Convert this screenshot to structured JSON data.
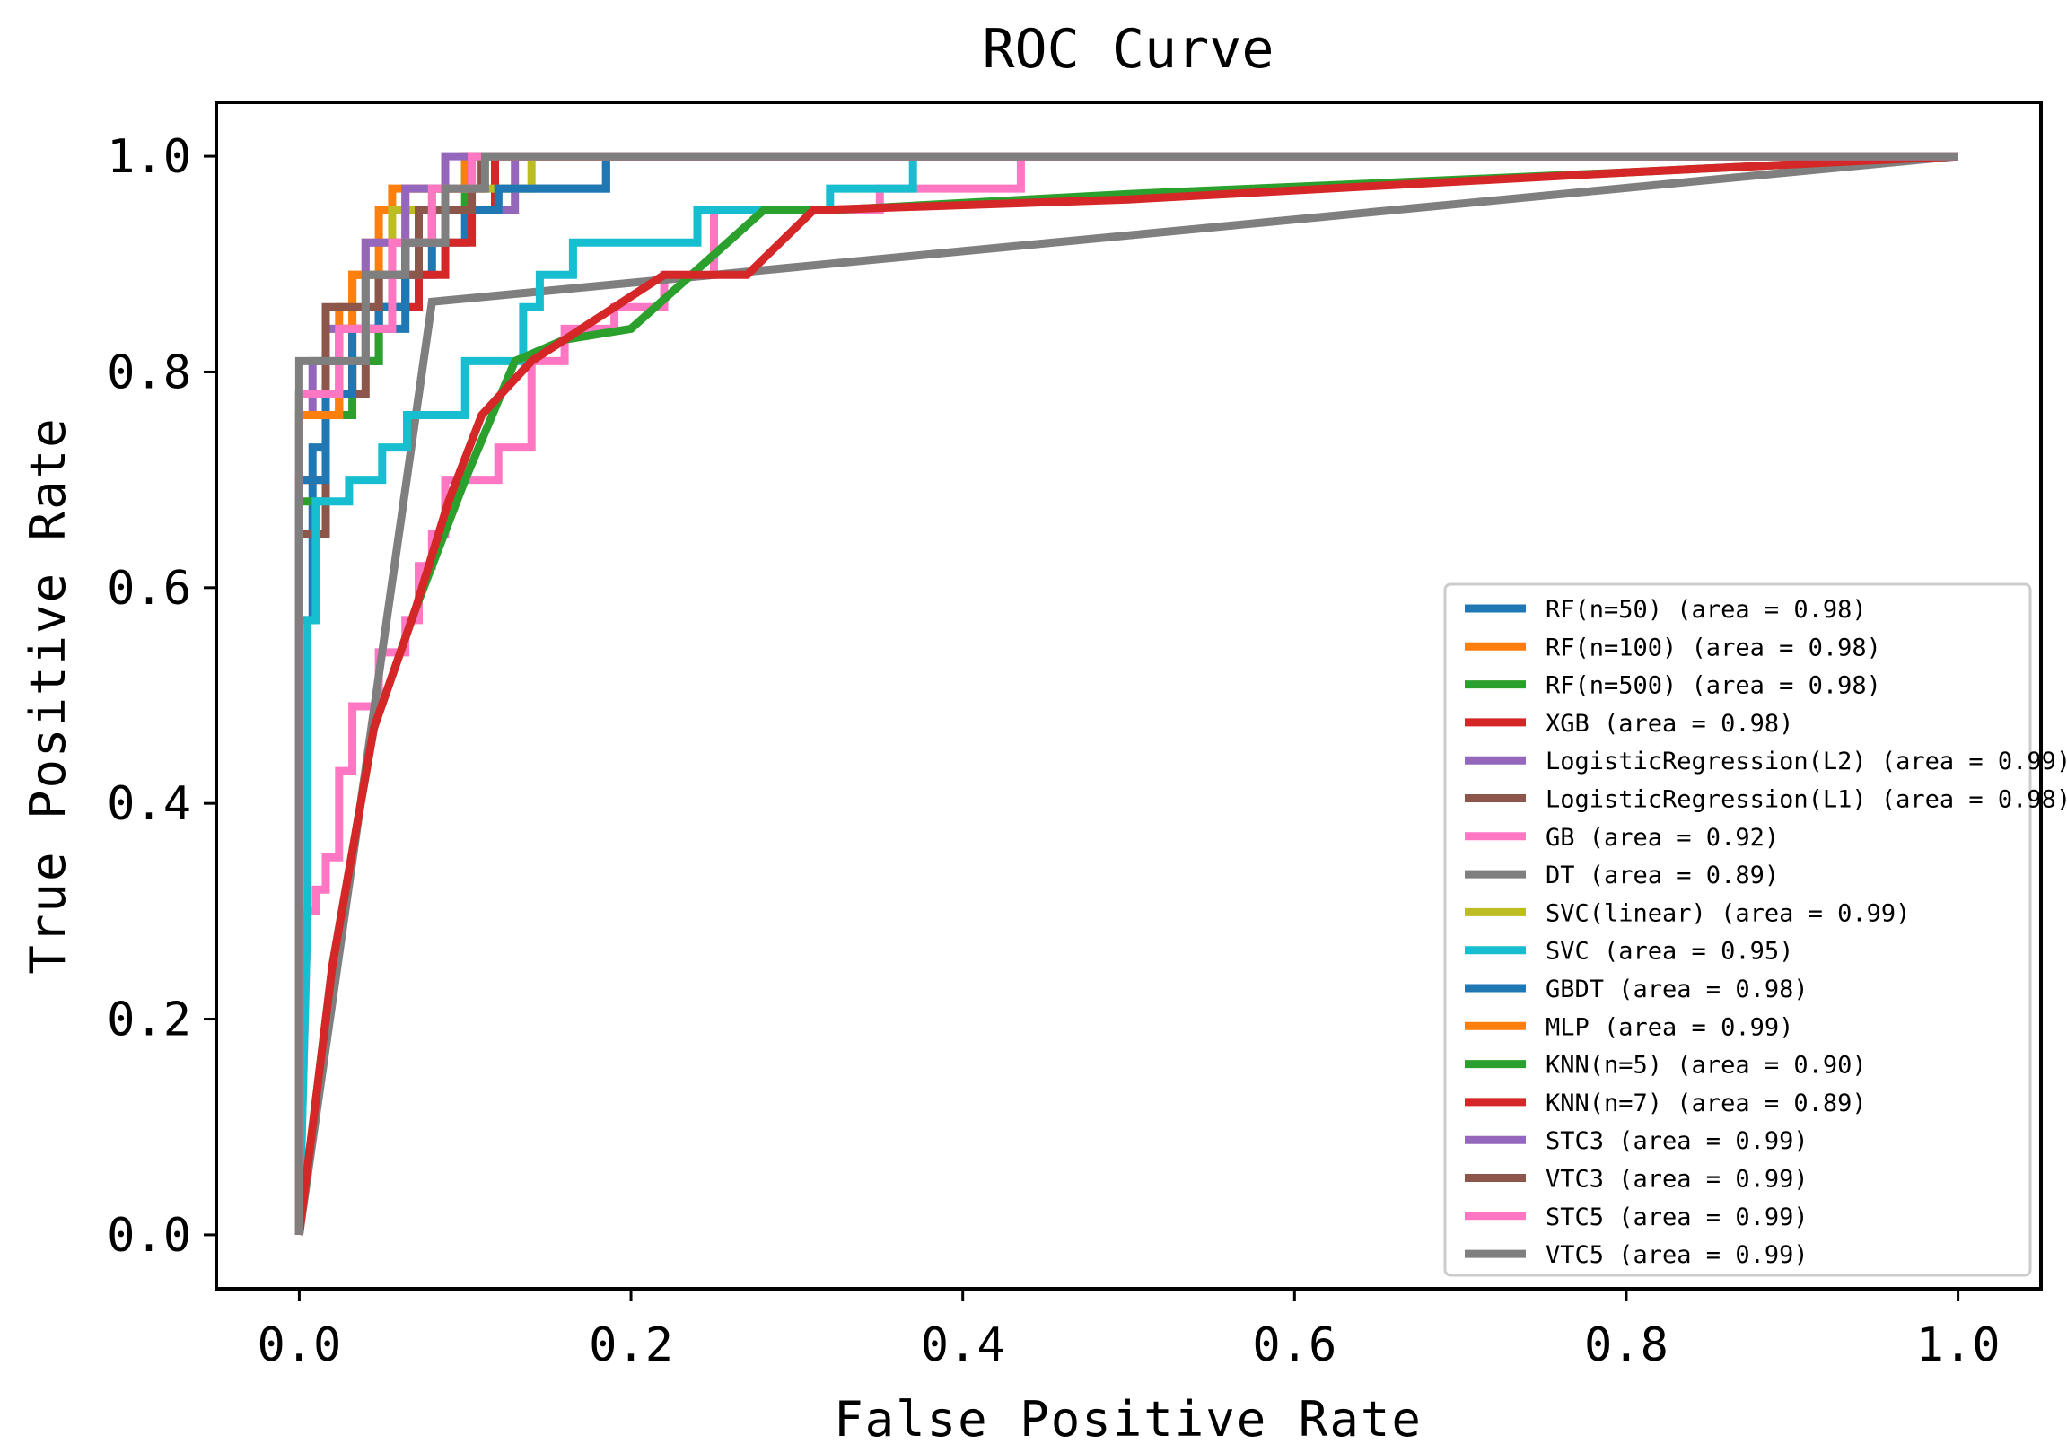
{
  "chart_data": {
    "type": "line",
    "title": "ROC Curve",
    "xlabel": "False Positive Rate",
    "ylabel": "True Positive Rate",
    "xlim": [
      -0.05,
      1.05
    ],
    "ylim": [
      -0.05,
      1.05
    ],
    "xticks": [
      "0.0",
      "0.2",
      "0.4",
      "0.6",
      "0.8",
      "1.0"
    ],
    "yticks": [
      "0.0",
      "0.2",
      "0.4",
      "0.6",
      "0.8",
      "1.0"
    ],
    "grid": false,
    "legend_position": "lower right",
    "series": [
      {
        "name": "RF(n=50) (area = 0.98)",
        "color": "#1f77b4",
        "x": [
          0,
          0,
          0.008,
          0.008,
          0.016,
          0.016,
          0.024,
          0.024,
          0.032,
          0.032,
          0.048,
          0.048,
          0.064,
          0.064,
          0.08,
          0.08,
          0.1,
          0.1,
          0.12,
          0.12,
          0.185,
          0.185,
          1
        ],
        "y": [
          0,
          0.57,
          0.57,
          0.73,
          0.73,
          0.76,
          0.76,
          0.78,
          0.78,
          0.81,
          0.81,
          0.84,
          0.84,
          0.89,
          0.89,
          0.92,
          0.92,
          0.95,
          0.95,
          0.97,
          0.97,
          1.0,
          1.0
        ]
      },
      {
        "name": "RF(n=100) (area = 0.98)",
        "color": "#ff7f0e",
        "x": [
          0,
          0,
          0.016,
          0.016,
          0.024,
          0.024,
          0.032,
          0.032,
          0.04,
          0.04,
          0.048,
          0.048,
          0.056,
          0.056,
          0.064,
          0.064,
          0.11,
          0.11,
          1
        ],
        "y": [
          0,
          0.7,
          0.7,
          0.76,
          0.76,
          0.86,
          0.86,
          0.89,
          0.89,
          0.92,
          0.92,
          0.95,
          0.95,
          0.97,
          0.97,
          0.97,
          0.97,
          1.0,
          1.0
        ]
      },
      {
        "name": "RF(n=500) (area = 0.98)",
        "color": "#2ca02c",
        "x": [
          0,
          0,
          0.016,
          0.016,
          0.032,
          0.032,
          0.048,
          0.048,
          0.064,
          0.064,
          0.08,
          0.08,
          0.1,
          0.1,
          1
        ],
        "y": [
          0,
          0.68,
          0.68,
          0.76,
          0.76,
          0.81,
          0.81,
          0.86,
          0.86,
          0.92,
          0.92,
          0.95,
          0.95,
          1.0,
          1.0
        ]
      },
      {
        "name": "XGB (area = 0.98)",
        "color": "#d62728",
        "x": [
          0,
          0,
          0.016,
          0.016,
          0.032,
          0.032,
          0.048,
          0.048,
          0.072,
          0.072,
          0.088,
          0.088,
          0.104,
          0.104,
          0.118,
          0.118,
          1
        ],
        "y": [
          0,
          0.7,
          0.7,
          0.78,
          0.78,
          0.84,
          0.84,
          0.86,
          0.86,
          0.89,
          0.89,
          0.92,
          0.92,
          0.95,
          0.95,
          1.0,
          1.0
        ]
      },
      {
        "name": "LogisticRegression(L2) (area = 0.99)",
        "color": "#9467bd",
        "x": [
          0,
          0,
          0.008,
          0.008,
          0.024,
          0.024,
          0.048,
          0.048,
          0.072,
          0.072,
          0.13,
          0.13,
          1
        ],
        "y": [
          0,
          0.76,
          0.76,
          0.81,
          0.81,
          0.84,
          0.84,
          0.89,
          0.89,
          0.95,
          0.95,
          1.0,
          1.0
        ]
      },
      {
        "name": "LogisticRegression(L1) (area = 0.98)",
        "color": "#8c564b",
        "x": [
          0,
          0,
          0.016,
          0.016,
          0.04,
          0.04,
          0.048,
          0.048,
          0.064,
          0.064,
          0.088,
          0.088,
          0.11,
          0.11,
          1
        ],
        "y": [
          0,
          0.65,
          0.65,
          0.78,
          0.78,
          0.84,
          0.84,
          0.89,
          0.89,
          0.92,
          0.92,
          0.97,
          0.97,
          1.0,
          1.0
        ]
      },
      {
        "name": "GB (area = 0.92)",
        "color": "#ff77c3",
        "x": [
          0,
          0.005,
          0.01,
          0.01,
          0.016,
          0.016,
          0.024,
          0.024,
          0.032,
          0.032,
          0.048,
          0.048,
          0.064,
          0.064,
          0.072,
          0.072,
          0.08,
          0.08,
          0.088,
          0.088,
          0.12,
          0.12,
          0.14,
          0.14,
          0.16,
          0.16,
          0.19,
          0.19,
          0.22,
          0.22,
          0.25,
          0.25,
          0.35,
          0.35,
          0.435,
          0.435,
          1
        ],
        "y": [
          0,
          0.3,
          0.3,
          0.32,
          0.32,
          0.35,
          0.35,
          0.43,
          0.43,
          0.49,
          0.49,
          0.54,
          0.54,
          0.57,
          0.57,
          0.62,
          0.62,
          0.65,
          0.65,
          0.7,
          0.7,
          0.73,
          0.73,
          0.81,
          0.81,
          0.84,
          0.84,
          0.86,
          0.86,
          0.89,
          0.89,
          0.95,
          0.95,
          0.97,
          0.97,
          1.0,
          1.0
        ]
      },
      {
        "name": "DT (area = 0.89)",
        "color": "#7f7f7f",
        "x": [
          0,
          0.08,
          1
        ],
        "y": [
          0,
          0.865,
          1.0
        ]
      },
      {
        "name": "SVC(linear) (area = 0.99)",
        "color": "#bcbd22",
        "x": [
          0,
          0,
          0.016,
          0.016,
          0.032,
          0.032,
          0.056,
          0.056,
          0.08,
          0.08,
          0.14,
          0.14,
          1
        ],
        "y": [
          0,
          0.78,
          0.78,
          0.84,
          0.84,
          0.89,
          0.89,
          0.95,
          0.95,
          0.97,
          0.97,
          1.0,
          1.0
        ]
      },
      {
        "name": "SVC (area = 0.95)",
        "color": "#17becf",
        "x": [
          0,
          0.005,
          0.005,
          0.01,
          0.01,
          0.03,
          0.03,
          0.05,
          0.05,
          0.065,
          0.065,
          0.1,
          0.1,
          0.135,
          0.135,
          0.145,
          0.145,
          0.165,
          0.165,
          0.24,
          0.24,
          0.32,
          0.32,
          0.37,
          0.37,
          1
        ],
        "y": [
          0,
          0.3,
          0.57,
          0.57,
          0.68,
          0.68,
          0.7,
          0.7,
          0.73,
          0.73,
          0.76,
          0.76,
          0.81,
          0.81,
          0.86,
          0.86,
          0.89,
          0.89,
          0.92,
          0.92,
          0.95,
          0.95,
          0.97,
          0.97,
          1.0,
          1.0
        ]
      },
      {
        "name": "GBDT (area = 0.98)",
        "color": "#1f77b4",
        "x": [
          0,
          0,
          0.016,
          0.016,
          0.032,
          0.032,
          0.048,
          0.048,
          0.064,
          0.064,
          0.08,
          0.08,
          0.12,
          0.12,
          0.185,
          0.185,
          1
        ],
        "y": [
          0,
          0.7,
          0.7,
          0.78,
          0.78,
          0.84,
          0.84,
          0.86,
          0.86,
          0.92,
          0.92,
          0.95,
          0.95,
          0.97,
          0.97,
          1.0,
          1.0
        ]
      },
      {
        "name": "MLP (area = 0.99)",
        "color": "#ff7f0e",
        "x": [
          0,
          0,
          0.024,
          0.024,
          0.032,
          0.032,
          0.048,
          0.048,
          0.064,
          0.064,
          0.1,
          0.1,
          1
        ],
        "y": [
          0,
          0.76,
          0.76,
          0.84,
          0.84,
          0.89,
          0.89,
          0.92,
          0.92,
          0.97,
          0.97,
          1.0,
          1.0
        ]
      },
      {
        "name": "KNN(n=5) (area = 0.90)",
        "color": "#2ca02c",
        "x": [
          0,
          0.02,
          0.045,
          0.07,
          0.1,
          0.13,
          0.16,
          0.2,
          0.28,
          0.32,
          0.5,
          0.8,
          1.0
        ],
        "y": [
          0,
          0.25,
          0.47,
          0.58,
          0.7,
          0.81,
          0.83,
          0.84,
          0.95,
          0.95,
          0.965,
          0.985,
          1.0
        ]
      },
      {
        "name": "KNN(n=7) (area = 0.89)",
        "color": "#d62728",
        "x": [
          0,
          0.02,
          0.045,
          0.07,
          0.09,
          0.11,
          0.14,
          0.17,
          0.2,
          0.22,
          0.27,
          0.31,
          0.5,
          0.8,
          1.0
        ],
        "y": [
          0,
          0.25,
          0.47,
          0.58,
          0.68,
          0.76,
          0.81,
          0.84,
          0.87,
          0.89,
          0.89,
          0.95,
          0.96,
          0.985,
          1.0
        ]
      },
      {
        "name": "STC3 (area = 0.99)",
        "color": "#9467bd",
        "x": [
          0,
          0,
          0.016,
          0.016,
          0.04,
          0.04,
          0.064,
          0.064,
          0.088,
          0.088,
          1
        ],
        "y": [
          0,
          0.78,
          0.78,
          0.84,
          0.84,
          0.92,
          0.92,
          0.97,
          0.97,
          1.0,
          1.0
        ]
      },
      {
        "name": "VTC3 (area = 0.99)",
        "color": "#8c564b",
        "x": [
          0,
          0,
          0.016,
          0.016,
          0.048,
          0.048,
          0.072,
          0.072,
          0.104,
          0.104,
          1
        ],
        "y": [
          0,
          0.78,
          0.78,
          0.86,
          0.86,
          0.89,
          0.89,
          0.95,
          0.95,
          1.0,
          1.0
        ]
      },
      {
        "name": "STC5 (area = 0.99)",
        "color": "#ff77c3",
        "x": [
          0,
          0,
          0.024,
          0.024,
          0.056,
          0.056,
          0.08,
          0.08,
          0.104,
          0.104,
          1
        ],
        "y": [
          0,
          0.78,
          0.78,
          0.84,
          0.84,
          0.92,
          0.92,
          0.97,
          0.97,
          1.0,
          1.0
        ]
      },
      {
        "name": "VTC5 (area = 0.99)",
        "color": "#7f7f7f",
        "x": [
          0,
          0,
          0.04,
          0.04,
          0.064,
          0.064,
          0.088,
          0.088,
          0.112,
          0.112,
          1
        ],
        "y": [
          0,
          0.81,
          0.81,
          0.89,
          0.89,
          0.92,
          0.92,
          0.97,
          0.97,
          1.0,
          1.0
        ]
      }
    ]
  }
}
